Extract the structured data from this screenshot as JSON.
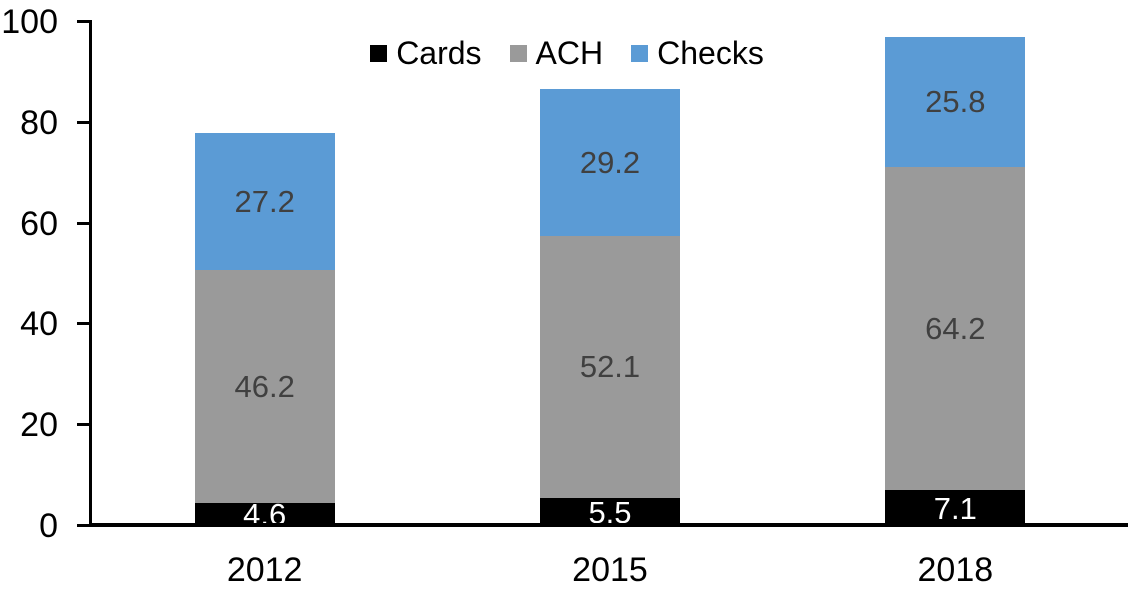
{
  "chart_data": {
    "type": "bar",
    "stacked": true,
    "title": "",
    "xlabel": "",
    "ylabel": "",
    "categories": [
      "2012",
      "2015",
      "2018"
    ],
    "series": [
      {
        "name": "Cards",
        "color": "#000000",
        "label_color": "#FFFFFF",
        "values": [
          4.6,
          5.5,
          7.1
        ]
      },
      {
        "name": "ACH",
        "color": "#9A9A9A",
        "label_color": "#404040",
        "values": [
          46.2,
          52.1,
          64.2
        ]
      },
      {
        "name": "Checks",
        "color": "#5B9BD5",
        "label_color": "#404040",
        "values": [
          27.2,
          29.2,
          25.8
        ]
      }
    ],
    "ylim": [
      0,
      100
    ],
    "yticks": [
      0,
      20,
      40,
      60,
      80,
      100
    ],
    "grid": false,
    "legend_position": "top-center",
    "axis_color": "#000000"
  }
}
